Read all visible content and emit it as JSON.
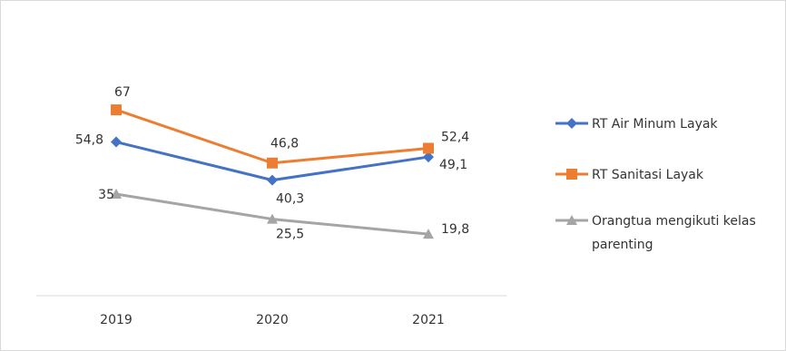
{
  "chart_data": {
    "type": "line",
    "title": "",
    "xlabel": "",
    "ylabel": "",
    "categories": [
      "2019",
      "2020",
      "2021"
    ],
    "ylim": [
      0,
      100
    ],
    "grid": false,
    "legend_position": "right",
    "series": [
      {
        "name": "RT Air Minum Layak",
        "values": [
          54.8,
          40.3,
          49.1
        ],
        "labels": [
          "54,8",
          "40,3",
          "49,1"
        ],
        "color": "#4472C4",
        "marker": "diamond"
      },
      {
        "name": "RT Sanitasi Layak",
        "values": [
          67,
          46.8,
          52.4
        ],
        "labels": [
          "67",
          "46,8",
          "52,4"
        ],
        "color": "#ED7D31",
        "marker": "square"
      },
      {
        "name": "Orangtua mengikuti kelas parenting",
        "name_lines": [
          "Orangtua mengikuti kelas",
          "parenting"
        ],
        "values": [
          35,
          25.5,
          19.8
        ],
        "labels": [
          "35",
          "25,5",
          "19,8"
        ],
        "color": "#A5A5A5",
        "marker": "triangle"
      }
    ]
  }
}
